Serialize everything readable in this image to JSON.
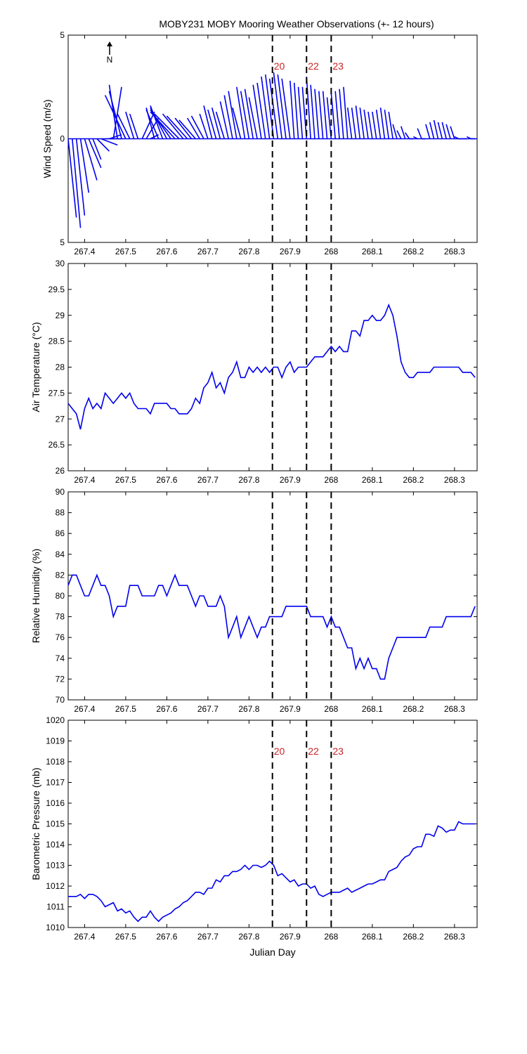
{
  "title": "MOBY231 MOBY Mooring Weather Observations (+- 12 hours)",
  "north_label": "N",
  "x_axis_label": "Julian Day",
  "x_range": [
    267.36,
    268.355
  ],
  "x_ticks": [
    "267.4",
    "267.5",
    "267.6",
    "267.7",
    "267.8",
    "267.9",
    "268",
    "268.1",
    "268.2",
    "268.3"
  ],
  "event_markers": [
    {
      "x": 267.857,
      "label": "20"
    },
    {
      "x": 267.94,
      "label": "22"
    },
    {
      "x": 268.0,
      "label": "23"
    }
  ],
  "panels": {
    "wind": {
      "ylabel": "Wind Speed (m/s)",
      "yticks": [
        "5",
        "0",
        "5"
      ]
    },
    "air": {
      "ylabel": "Air Temperature (°C)",
      "yticks": [
        "30",
        "29.5",
        "29",
        "28.5",
        "28",
        "27.5",
        "27",
        "26.5",
        "26"
      ]
    },
    "rh": {
      "ylabel": "Relative Humidity (%)",
      "yticks": [
        "90",
        "88",
        "86",
        "84",
        "82",
        "80",
        "78",
        "76",
        "74",
        "72",
        "70"
      ]
    },
    "pres": {
      "ylabel": "Barometric Pressure (mb)",
      "yticks": [
        "1020",
        "1019",
        "1018",
        "1017",
        "1016",
        "1015",
        "1014",
        "1013",
        "1012",
        "1011",
        "1010"
      ]
    }
  },
  "colors": {
    "series": "#0000ee",
    "marker_label": "#cc2222",
    "frame": "#000000"
  },
  "chart_data": [
    {
      "type": "line",
      "subtype": "wind-vector (stick) plot",
      "title": "MOBY231 MOBY Mooring Weather Observations (+- 12 hours)",
      "ylabel": "Wind Speed (m/s)",
      "ylim": [
        -5,
        5
      ],
      "xlim": [
        267.36,
        268.355
      ],
      "vectors_u_v": {
        "x": [
          267.36,
          267.37,
          267.38,
          267.39,
          267.4,
          267.41,
          267.42,
          267.43,
          267.44,
          267.45,
          267.46,
          267.47,
          267.48,
          267.49,
          267.5,
          267.51,
          267.52,
          267.53,
          267.54,
          267.55,
          267.56,
          267.57,
          267.58,
          267.59,
          267.6,
          267.61,
          267.62,
          267.63,
          267.64,
          267.65,
          267.66,
          267.67,
          267.68,
          267.69,
          267.7,
          267.71,
          267.72,
          267.73,
          267.74,
          267.75,
          267.76,
          267.77,
          267.78,
          267.79,
          267.8,
          267.81,
          267.82,
          267.83,
          267.84,
          267.85,
          267.86,
          267.87,
          267.88,
          267.89,
          267.9,
          267.91,
          267.92,
          267.93,
          267.94,
          267.95,
          267.96,
          267.97,
          267.98,
          267.99,
          268.0,
          268.01,
          268.02,
          268.03,
          268.04,
          268.05,
          268.06,
          268.07,
          268.08,
          268.09,
          268.1,
          268.11,
          268.12,
          268.13,
          268.14,
          268.15,
          268.16,
          268.17,
          268.18,
          268.19,
          268.2,
          268.21,
          268.22,
          268.23,
          268.24,
          268.25,
          268.26,
          268.27,
          268.28,
          268.29,
          268.3,
          268.31,
          268.32,
          268.33,
          268.34,
          268.35
        ],
        "u": [
          0.02,
          0.02,
          0.02,
          0.02,
          0.03,
          0.03,
          0.02,
          0.03,
          0.04,
          0.04,
          0.03,
          0.02,
          -0.02,
          -0.03,
          -0.05,
          -0.03,
          -0.02,
          -0.02,
          0.03,
          0.03,
          0.02,
          -0.02,
          -0.03,
          -0.03,
          -0.04,
          -0.05,
          -0.06,
          -0.06,
          -0.05,
          -0.05,
          -0.04,
          -0.04,
          -0.03,
          -0.03,
          -0.02,
          -0.02,
          -0.02,
          -0.02,
          -0.02,
          -0.02,
          -0.02,
          -0.02,
          -0.02,
          -0.02,
          -0.02,
          -0.02,
          -0.02,
          -0.02,
          -0.02,
          -0.02,
          -0.02,
          -0.02,
          -0.02,
          -0.02,
          -0.02,
          -0.01,
          -0.01,
          -0.01,
          -0.01,
          -0.01,
          -0.01,
          -0.01,
          -0.01,
          -0.01,
          -0.01,
          -0.01,
          -0.01,
          -0.01,
          -0.01,
          -0.01,
          -0.01,
          -0.01,
          -0.01,
          -0.01,
          -0.01,
          -0.01,
          -0.01,
          -0.01,
          -0.01,
          -0.01,
          -0.01,
          -0.01,
          -0.01,
          -0.01,
          -0.01,
          -0.01,
          -0.01,
          -0.01,
          -0.01,
          -0.01,
          -0.01,
          -0.01,
          -0.01,
          -0.01,
          -0.01,
          -0.01,
          -0.01,
          -0.01,
          -0.01,
          -0.01
        ],
        "v": [
          -3.8,
          -4.3,
          -3.7,
          -2.6,
          -2.0,
          -1.4,
          -1.0,
          -0.6,
          -0.3,
          0.0,
          0.2,
          2.5,
          2.6,
          2.3,
          2.1,
          1.2,
          1.3,
          1.2,
          1.3,
          1.0,
          0.2,
          1.5,
          1.4,
          1.6,
          1.5,
          1.4,
          1.3,
          1.2,
          1.2,
          1.1,
          1.0,
          0.9,
          1.0,
          1.1,
          1.2,
          1.6,
          1.4,
          1.5,
          1.3,
          1.8,
          2.1,
          2.3,
          1.5,
          2.5,
          2.3,
          2.4,
          2.0,
          2.6,
          2.7,
          3.0,
          3.1,
          2.9,
          3.2,
          3.1,
          2.9,
          2.8,
          2.7,
          2.5,
          2.5,
          3.0,
          2.6,
          2.4,
          2.3,
          2.3,
          2.0,
          2.2,
          2.3,
          2.4,
          2.5,
          1.5,
          1.5,
          1.6,
          1.5,
          1.4,
          1.3,
          1.3,
          1.4,
          1.5,
          1.4,
          1.3,
          0.7,
          0.4,
          0.6,
          0.3,
          0.0,
          0.1,
          0.5,
          0.0,
          0.7,
          0.8,
          0.9,
          0.8,
          0.8,
          0.7,
          0.6,
          0.1,
          0.0,
          0.0,
          0.1,
          0.0
        ]
      }
    },
    {
      "type": "line",
      "ylabel": "Air Temperature (°C)",
      "ylim": [
        26,
        30
      ],
      "xlim": [
        267.36,
        268.355
      ],
      "x": [
        267.36,
        267.37,
        267.38,
        267.39,
        267.4,
        267.41,
        267.42,
        267.43,
        267.44,
        267.45,
        267.46,
        267.47,
        267.48,
        267.49,
        267.5,
        267.51,
        267.52,
        267.53,
        267.54,
        267.55,
        267.56,
        267.57,
        267.58,
        267.59,
        267.6,
        267.61,
        267.62,
        267.63,
        267.64,
        267.65,
        267.66,
        267.67,
        267.68,
        267.69,
        267.7,
        267.71,
        267.72,
        267.73,
        267.74,
        267.75,
        267.76,
        267.77,
        267.78,
        267.79,
        267.8,
        267.81,
        267.82,
        267.83,
        267.84,
        267.85,
        267.86,
        267.87,
        267.88,
        267.89,
        267.9,
        267.91,
        267.92,
        267.93,
        267.94,
        267.95,
        267.96,
        267.97,
        267.98,
        267.99,
        268.0,
        268.01,
        268.02,
        268.03,
        268.04,
        268.05,
        268.06,
        268.07,
        268.08,
        268.09,
        268.1,
        268.11,
        268.12,
        268.13,
        268.14,
        268.15,
        268.16,
        268.17,
        268.18,
        268.19,
        268.2,
        268.21,
        268.22,
        268.23,
        268.24,
        268.25,
        268.26,
        268.27,
        268.28,
        268.29,
        268.3,
        268.31,
        268.32,
        268.33,
        268.34,
        268.35
      ],
      "values": [
        27.3,
        27.2,
        27.1,
        26.8,
        27.2,
        27.4,
        27.2,
        27.3,
        27.2,
        27.5,
        27.4,
        27.3,
        27.4,
        27.5,
        27.4,
        27.5,
        27.3,
        27.2,
        27.2,
        27.2,
        27.1,
        27.3,
        27.3,
        27.3,
        27.3,
        27.2,
        27.2,
        27.1,
        27.1,
        27.1,
        27.2,
        27.4,
        27.3,
        27.6,
        27.7,
        27.9,
        27.6,
        27.7,
        27.5,
        27.8,
        27.9,
        28.1,
        27.8,
        27.8,
        28.0,
        27.9,
        28.0,
        27.9,
        28.0,
        27.9,
        28.0,
        28.0,
        27.8,
        28.0,
        28.1,
        27.9,
        28.0,
        28.0,
        28.0,
        28.1,
        28.2,
        28.2,
        28.2,
        28.3,
        28.4,
        28.3,
        28.4,
        28.3,
        28.3,
        28.7,
        28.7,
        28.6,
        28.9,
        28.9,
        29.0,
        28.9,
        28.9,
        29.0,
        29.2,
        29.0,
        28.6,
        28.1,
        27.9,
        27.8,
        27.8,
        27.9,
        27.9,
        27.9,
        27.9,
        28.0,
        28.0,
        28.0,
        28.0,
        28.0,
        28.0,
        28.0,
        27.9,
        27.9,
        27.9,
        27.8
      ]
    },
    {
      "type": "line",
      "ylabel": "Relative Humidity (%)",
      "ylim": [
        70,
        90
      ],
      "xlim": [
        267.36,
        268.355
      ],
      "x": [
        267.36,
        267.37,
        267.38,
        267.39,
        267.4,
        267.41,
        267.42,
        267.43,
        267.44,
        267.45,
        267.46,
        267.47,
        267.48,
        267.49,
        267.5,
        267.51,
        267.52,
        267.53,
        267.54,
        267.55,
        267.56,
        267.57,
        267.58,
        267.59,
        267.6,
        267.61,
        267.62,
        267.63,
        267.64,
        267.65,
        267.66,
        267.67,
        267.68,
        267.69,
        267.7,
        267.71,
        267.72,
        267.73,
        267.74,
        267.75,
        267.76,
        267.77,
        267.78,
        267.79,
        267.8,
        267.81,
        267.82,
        267.83,
        267.84,
        267.85,
        267.86,
        267.87,
        267.88,
        267.89,
        267.9,
        267.91,
        267.92,
        267.93,
        267.94,
        267.95,
        267.96,
        267.97,
        267.98,
        267.99,
        268.0,
        268.01,
        268.02,
        268.03,
        268.04,
        268.05,
        268.06,
        268.07,
        268.08,
        268.09,
        268.1,
        268.11,
        268.12,
        268.13,
        268.14,
        268.15,
        268.16,
        268.17,
        268.18,
        268.19,
        268.2,
        268.21,
        268.22,
        268.23,
        268.24,
        268.25,
        268.26,
        268.27,
        268.28,
        268.29,
        268.3,
        268.31,
        268.32,
        268.33,
        268.34,
        268.35
      ],
      "values": [
        81,
        82,
        82,
        81,
        80,
        80,
        81,
        82,
        81,
        81,
        80,
        78,
        79,
        79,
        79,
        81,
        81,
        81,
        80,
        80,
        80,
        80,
        81,
        81,
        80,
        81,
        82,
        81,
        81,
        81,
        80,
        79,
        80,
        80,
        79,
        79,
        79,
        80,
        79,
        76,
        77,
        78,
        76,
        77,
        78,
        77,
        76,
        77,
        77,
        78,
        78,
        78,
        78,
        79,
        79,
        79,
        79,
        79,
        79,
        78,
        78,
        78,
        78,
        77,
        78,
        77,
        77,
        76,
        75,
        75,
        73,
        74,
        73,
        74,
        73,
        73,
        72,
        72,
        74,
        75,
        76,
        76,
        76,
        76,
        76,
        76,
        76,
        76,
        77,
        77,
        77,
        77,
        78,
        78,
        78,
        78,
        78,
        78,
        78,
        79
      ]
    },
    {
      "type": "line",
      "ylabel": "Barometric Pressure (mb)",
      "xlabel": "Julian Day",
      "ylim": [
        1010,
        1020
      ],
      "xlim": [
        267.36,
        268.355
      ],
      "x": [
        267.36,
        267.37,
        267.38,
        267.39,
        267.4,
        267.41,
        267.42,
        267.43,
        267.44,
        267.45,
        267.46,
        267.47,
        267.48,
        267.49,
        267.5,
        267.51,
        267.52,
        267.53,
        267.54,
        267.55,
        267.56,
        267.57,
        267.58,
        267.59,
        267.6,
        267.61,
        267.62,
        267.63,
        267.64,
        267.65,
        267.66,
        267.67,
        267.68,
        267.69,
        267.7,
        267.71,
        267.72,
        267.73,
        267.74,
        267.75,
        267.76,
        267.77,
        267.78,
        267.79,
        267.8,
        267.81,
        267.82,
        267.83,
        267.84,
        267.85,
        267.86,
        267.87,
        267.88,
        267.89,
        267.9,
        267.91,
        267.92,
        267.93,
        267.94,
        267.95,
        267.96,
        267.97,
        267.98,
        267.99,
        268.0,
        268.01,
        268.02,
        268.03,
        268.04,
        268.05,
        268.06,
        268.07,
        268.08,
        268.09,
        268.1,
        268.11,
        268.12,
        268.13,
        268.14,
        268.15,
        268.16,
        268.17,
        268.18,
        268.19,
        268.2,
        268.21,
        268.22,
        268.23,
        268.24,
        268.25,
        268.26,
        268.27,
        268.28,
        268.29,
        268.3,
        268.31,
        268.32,
        268.33,
        268.34,
        268.35
      ],
      "values": [
        1011.5,
        1011.5,
        1011.5,
        1011.6,
        1011.4,
        1011.6,
        1011.6,
        1011.5,
        1011.3,
        1011.0,
        1011.1,
        1011.2,
        1010.8,
        1010.9,
        1010.7,
        1010.8,
        1010.5,
        1010.3,
        1010.5,
        1010.5,
        1010.8,
        1010.5,
        1010.3,
        1010.5,
        1010.6,
        1010.7,
        1010.9,
        1011.0,
        1011.2,
        1011.3,
        1011.5,
        1011.7,
        1011.7,
        1011.6,
        1011.9,
        1011.9,
        1012.3,
        1012.2,
        1012.5,
        1012.5,
        1012.7,
        1012.7,
        1012.8,
        1013.0,
        1012.8,
        1013.0,
        1013.0,
        1012.9,
        1013.0,
        1013.2,
        1013.0,
        1012.5,
        1012.6,
        1012.4,
        1012.2,
        1012.3,
        1012.0,
        1012.1,
        1012.1,
        1011.9,
        1012.0,
        1011.6,
        1011.5,
        1011.6,
        1011.7,
        1011.7,
        1011.7,
        1011.8,
        1011.9,
        1011.7,
        1011.8,
        1011.9,
        1012.0,
        1012.1,
        1012.1,
        1012.2,
        1012.3,
        1012.3,
        1012.7,
        1012.8,
        1012.9,
        1013.2,
        1013.4,
        1013.5,
        1013.8,
        1013.9,
        1013.9,
        1014.5,
        1014.5,
        1014.4,
        1014.9,
        1014.8,
        1014.6,
        1014.7,
        1014.7,
        1015.1,
        1015.0,
        1015.0,
        1015.0,
        1015.0
      ]
    }
  ]
}
